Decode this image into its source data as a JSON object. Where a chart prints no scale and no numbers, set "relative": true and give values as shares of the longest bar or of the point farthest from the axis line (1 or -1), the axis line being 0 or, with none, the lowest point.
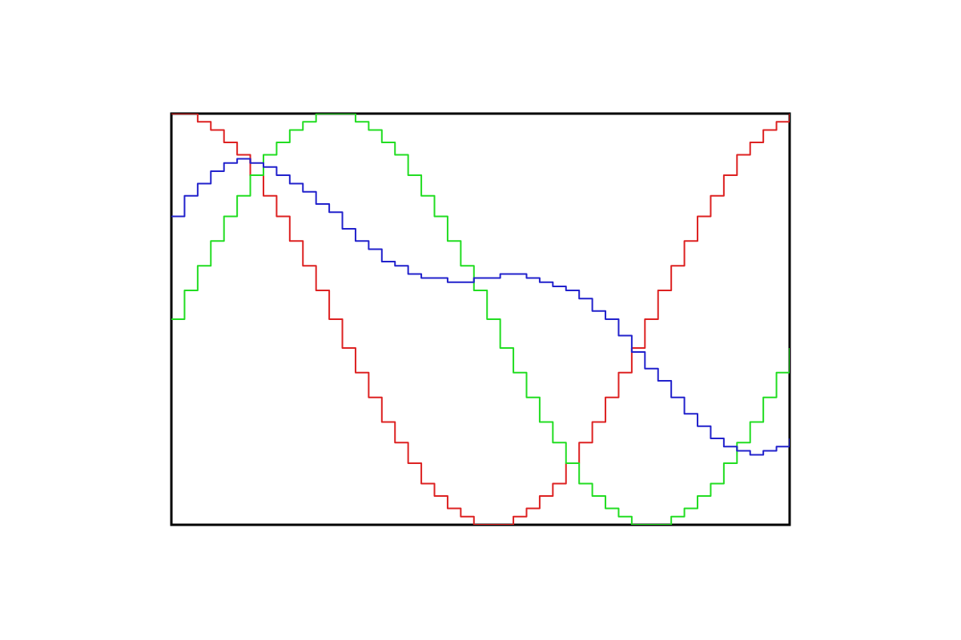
{
  "chart_data": {
    "type": "step",
    "relative": true,
    "legend": false,
    "tick_labels": false,
    "categories": [
      null,
      null,
      null,
      null,
      null,
      null,
      null,
      null,
      null,
      null,
      null,
      null,
      null,
      null,
      null,
      null,
      null,
      null,
      null,
      null,
      null,
      null,
      null,
      null,
      null,
      null,
      null,
      null,
      null,
      null,
      null,
      null,
      null,
      null,
      null,
      null,
      null,
      null,
      null,
      null,
      null,
      null,
      null,
      null,
      null,
      null,
      null,
      null
    ],
    "series": [
      {
        "color": "#dd2222",
        "values": [
          1,
          1,
          0.98,
          0.96,
          0.93,
          0.9,
          0.85,
          0.8,
          0.75,
          0.69,
          0.63,
          0.57,
          0.5,
          0.43,
          0.37,
          0.31,
          0.25,
          0.2,
          0.15,
          0.1,
          0.07,
          0.04,
          0.02,
          0,
          0,
          0,
          0.02,
          0.04,
          0.07,
          0.1,
          0.15,
          0.2,
          0.25,
          0.31,
          0.37,
          0.43,
          0.5,
          0.57,
          0.63,
          0.69,
          0.75,
          0.8,
          0.85,
          0.9,
          0.93,
          0.96,
          0.98,
          1
        ]
      },
      {
        "color": "#22dd22",
        "values": [
          0.5,
          0.57,
          0.63,
          0.69,
          0.75,
          0.8,
          0.85,
          0.9,
          0.93,
          0.96,
          0.98,
          1,
          1,
          1,
          0.98,
          0.96,
          0.93,
          0.9,
          0.85,
          0.8,
          0.75,
          0.69,
          0.63,
          0.57,
          0.5,
          0.43,
          0.37,
          0.31,
          0.25,
          0.2,
          0.15,
          0.1,
          0.07,
          0.04,
          0.02,
          0,
          0,
          0,
          0.02,
          0.04,
          0.07,
          0.1,
          0.15,
          0.2,
          0.25,
          0.31,
          0.37,
          0.43
        ]
      },
      {
        "color": "#2222cc",
        "values": [
          0.75,
          0.8,
          0.83,
          0.86,
          0.88,
          0.89,
          0.88,
          0.87,
          0.85,
          0.83,
          0.81,
          0.78,
          0.76,
          0.72,
          0.69,
          0.67,
          0.64,
          0.63,
          0.61,
          0.6,
          0.6,
          0.59,
          0.59,
          0.6,
          0.6,
          0.61,
          0.61,
          0.6,
          0.59,
          0.58,
          0.57,
          0.55,
          0.52,
          0.5,
          0.46,
          0.42,
          0.38,
          0.35,
          0.31,
          0.27,
          0.24,
          0.21,
          0.19,
          0.18,
          0.17,
          0.18,
          0.19,
          0.21
        ]
      }
    ]
  }
}
